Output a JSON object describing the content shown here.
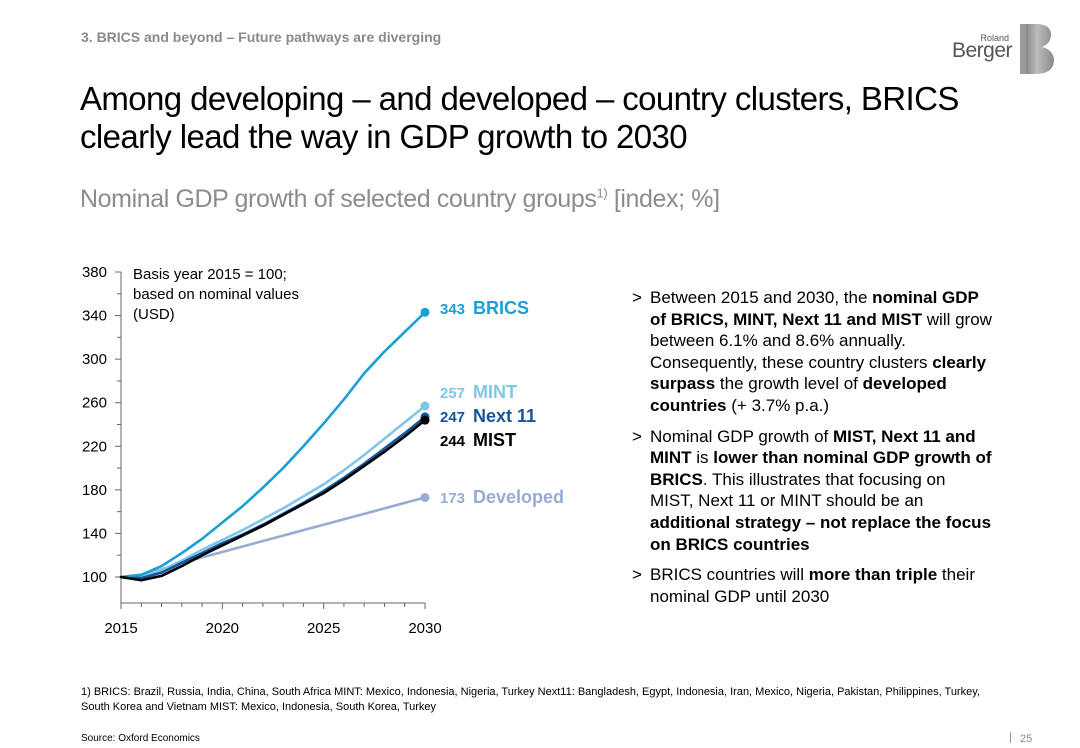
{
  "header": {
    "section_label": "3. BRICS and beyond – Future pathways are diverging",
    "logo_small": "Roland",
    "logo_large": "Berger"
  },
  "title": "Among developing – and developed – country clusters, BRICS clearly lead the way in GDP growth to 2030",
  "subtitle": {
    "text": "Nominal GDP growth of selected country groups",
    "sup": "1)",
    "units": " [index; %]"
  },
  "basis_note": {
    "line1": "Basis year 2015 = 100;",
    "line2": "based on nominal values",
    "line3": "(USD)"
  },
  "colors": {
    "brics": "#1b9fd5",
    "mint": "#7fc6e8",
    "next11": "#15569a",
    "mist": "#000000",
    "developed": "#97abd3",
    "axis": "#666666"
  },
  "chart_data": {
    "type": "line",
    "x": [
      2015,
      2016,
      2017,
      2018,
      2019,
      2020,
      2021,
      2022,
      2023,
      2024,
      2025,
      2026,
      2027,
      2028,
      2029,
      2030
    ],
    "xticks": [
      2015,
      2020,
      2025,
      2030
    ],
    "yticks": [
      100,
      140,
      180,
      220,
      260,
      300,
      340,
      380
    ],
    "ylim": [
      100,
      380
    ],
    "series": [
      {
        "name": "BRICS",
        "end_label": "343",
        "color_key": "brics",
        "values": [
          100,
          102,
          110,
          122,
          135,
          150,
          165,
          182,
          200,
          220,
          241,
          263,
          287,
          307,
          325,
          343
        ]
      },
      {
        "name": "MINT",
        "end_label": "257",
        "color_key": "mint",
        "values": [
          100,
          100,
          106,
          115,
          125,
          134,
          143,
          153,
          163,
          174,
          185,
          198,
          212,
          227,
          242,
          257
        ]
      },
      {
        "name": "Next 11",
        "end_label": "247",
        "color_key": "next11",
        "values": [
          100,
          99,
          104,
          113,
          122,
          131,
          139,
          148,
          158,
          168,
          179,
          191,
          204,
          218,
          232,
          247
        ]
      },
      {
        "name": "MIST",
        "end_label": "244",
        "color_key": "mist",
        "values": [
          100,
          97,
          101,
          110,
          120,
          129,
          138,
          147,
          157,
          167,
          177,
          189,
          202,
          215,
          229,
          244
        ]
      },
      {
        "name": "Developed",
        "end_label": "173",
        "color_key": "developed",
        "values": [
          100,
          102,
          107,
          113,
          118,
          123,
          128,
          133,
          138,
          143,
          148,
          153,
          158,
          163,
          168,
          173
        ]
      }
    ]
  },
  "bullets": [
    {
      "segments": [
        {
          "text": "Between 2015 and 2030, the ",
          "bold": false
        },
        {
          "text": "nominal GDP of BRICS, MINT, Next 11 and MIST",
          "bold": true
        },
        {
          "text": " will grow between 6.1% and 8.6% annually. Consequently, these country clusters ",
          "bold": false
        },
        {
          "text": "clearly surpass",
          "bold": true
        },
        {
          "text": " the growth level of ",
          "bold": false
        },
        {
          "text": "developed countries",
          "bold": true
        },
        {
          "text": " (+ 3.7% p.a.)",
          "bold": false
        }
      ]
    },
    {
      "segments": [
        {
          "text": "Nominal GDP growth of ",
          "bold": false
        },
        {
          "text": "MIST, Next 11 and MINT",
          "bold": true
        },
        {
          "text": " is ",
          "bold": false
        },
        {
          "text": "lower than nominal GDP growth of BRICS",
          "bold": true
        },
        {
          "text": ". This illustrates that focusing on MIST, Next 11 or MINT should be an ",
          "bold": false
        },
        {
          "text": "additional strategy – not replace the focus on BRICS countries",
          "bold": true
        }
      ]
    },
    {
      "segments": [
        {
          "text": "BRICS countries will ",
          "bold": false
        },
        {
          "text": "more than triple",
          "bold": true
        },
        {
          "text": " their nominal GDP until 2030",
          "bold": false
        }
      ]
    }
  ],
  "bullet_marker": ">",
  "footnote": "1) BRICS: Brazil, Russia, India, China, South Africa   MINT: Mexico, Indonesia, Nigeria, Turkey   Next11: Bangladesh, Egypt, Indonesia, Iran, Mexico, Nigeria, Pakistan, Philippines, Turkey, South Korea and Vietnam   MIST: Mexico, Indonesia, South Korea, Turkey",
  "source": "Source: Oxford Economics",
  "page_number": "25"
}
